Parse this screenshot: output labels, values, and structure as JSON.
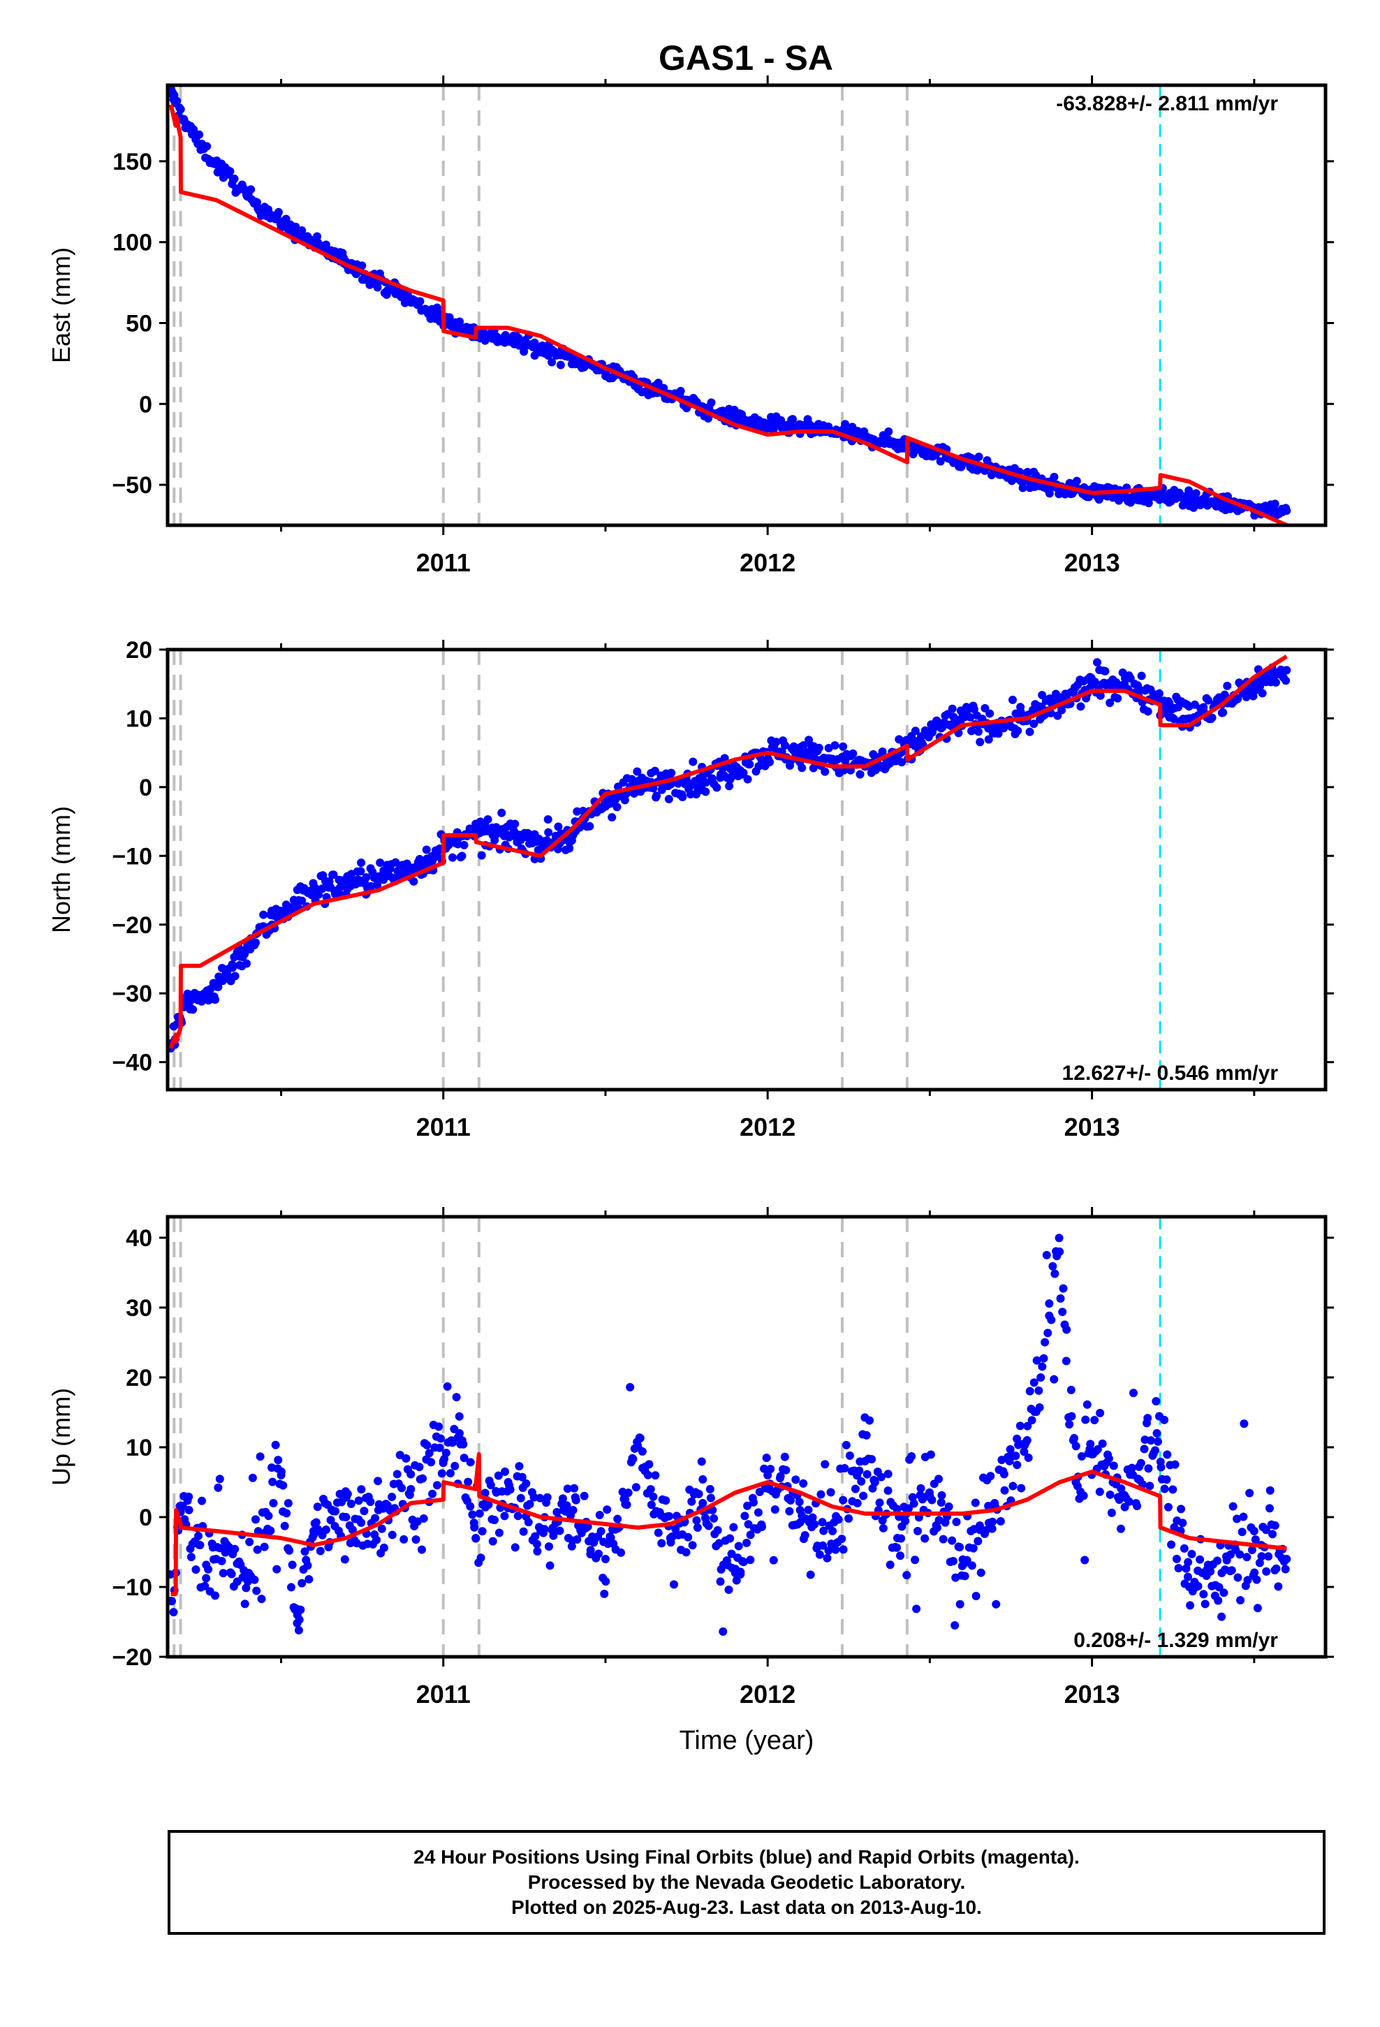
{
  "title": "GAS1 - SA",
  "footer": {
    "line1": "24 Hour Positions Using Final Orbits (blue) and Rapid Orbits (magenta).",
    "line2": "Processed by the Nevada Geodetic Laboratory.",
    "line3": "Plotted on 2025-Aug-23. Last data on 2013-Aug-10."
  },
  "colors": {
    "final_orbits": "#0000ff",
    "model": "#ff0000",
    "equipment_change": "#c0c0c0",
    "event_marker": "#00e5ee"
  },
  "chart_data": [
    {
      "type": "scatter",
      "component": "east",
      "ylabel": "East (mm)",
      "xlabel": "",
      "xlim": [
        2010.15,
        2013.72
      ],
      "ylim": [
        -75,
        197
      ],
      "yticks": [
        -50,
        0,
        50,
        100,
        150
      ],
      "xticks": [
        "2011",
        "2012",
        "2013"
      ],
      "rate_label": "-63.828+/- 2.811 mm/yr",
      "rate_position": "top-right",
      "grid": false,
      "vlines_gray": [
        2010.17,
        2010.19,
        2011.0,
        2011.11,
        2012.23,
        2012.43
      ],
      "vline_cyan": 2013.21,
      "series": [
        {
          "x": [
            2010.16,
            2010.2,
            2010.25,
            2010.3,
            2010.4,
            2010.5,
            2010.6,
            2010.7,
            2010.8,
            2010.9,
            2011.0,
            2011.1,
            2011.2,
            2011.3,
            2011.4,
            2011.5,
            2011.6,
            2011.7,
            2011.8,
            2011.9,
            2012.0,
            2012.1,
            2012.2,
            2012.3,
            2012.4,
            2012.5,
            2012.6,
            2012.7,
            2012.8,
            2012.9,
            2013.0,
            2013.1,
            2013.2,
            2013.3,
            2013.4,
            2013.5,
            2013.6
          ],
          "y": [
            192,
            176,
            160,
            148,
            128,
            112,
            99,
            88,
            76,
            64,
            52,
            44,
            40,
            34,
            28,
            21,
            13,
            6,
            -3,
            -9,
            -13,
            -15,
            -17,
            -21,
            -24,
            -29,
            -35,
            -41,
            -47,
            -52,
            -54,
            -56,
            -57,
            -58,
            -61,
            -64,
            -66
          ]
        }
      ],
      "model": {
        "x": [
          2010.16,
          2010.175,
          2010.176,
          2010.19,
          2010.191,
          2010.3,
          2010.5,
          2010.7,
          2010.9,
          2011.0,
          2011.001,
          2011.1,
          2011.101,
          2011.2,
          2011.3,
          2011.5,
          2011.7,
          2011.9,
          2012.0,
          2012.1,
          2012.2,
          2012.3,
          2012.43,
          2012.431,
          2012.6,
          2012.8,
          2013.0,
          2013.1,
          2013.21,
          2013.211,
          2013.3,
          2013.4,
          2013.5,
          2013.6
        ],
        "y": [
          185,
          172,
          178,
          165,
          131,
          126,
          106,
          86,
          70,
          64,
          45,
          41,
          47,
          47,
          42,
          22,
          5,
          -13,
          -19,
          -17,
          -17,
          -24,
          -36,
          -21,
          -34,
          -46,
          -55,
          -54,
          -52,
          -44,
          -48,
          -58,
          -66,
          -75
        ]
      }
    },
    {
      "type": "scatter",
      "component": "north",
      "ylabel": "North (mm)",
      "xlabel": "",
      "xlim": [
        2010.15,
        2013.72
      ],
      "ylim": [
        -44,
        20
      ],
      "yticks": [
        -40,
        -30,
        -20,
        -10,
        0,
        10,
        20
      ],
      "xticks": [
        "2011",
        "2012",
        "2013"
      ],
      "rate_label": "12.627+/- 0.546 mm/yr",
      "rate_position": "bottom-right",
      "grid": false,
      "vlines_gray": [
        2010.17,
        2010.19,
        2011.0,
        2011.11,
        2012.23,
        2012.43
      ],
      "vline_cyan": 2013.21,
      "series": [
        {
          "x": [
            2010.16,
            2010.2,
            2010.25,
            2010.3,
            2010.4,
            2010.5,
            2010.6,
            2010.7,
            2010.8,
            2010.9,
            2011.0,
            2011.1,
            2011.2,
            2011.3,
            2011.4,
            2011.5,
            2011.6,
            2011.7,
            2011.8,
            2011.9,
            2012.0,
            2012.1,
            2012.2,
            2012.3,
            2012.4,
            2012.5,
            2012.6,
            2012.7,
            2012.8,
            2012.9,
            2013.0,
            2013.1,
            2013.2,
            2013.3,
            2013.4,
            2013.5,
            2013.6
          ],
          "y": [
            -38,
            -32,
            -31,
            -29,
            -23,
            -18,
            -15,
            -14,
            -13,
            -12,
            -9,
            -7,
            -7,
            -8,
            -7,
            -2,
            0,
            1,
            1,
            3,
            5,
            5,
            4,
            3,
            4,
            8,
            10,
            9,
            10,
            12,
            15,
            15,
            13,
            10,
            12,
            15,
            17
          ]
        }
      ],
      "model": {
        "x": [
          2010.16,
          2010.175,
          2010.176,
          2010.19,
          2010.191,
          2010.25,
          2010.4,
          2010.6,
          2010.8,
          2010.9,
          2011.0,
          2011.001,
          2011.1,
          2011.101,
          2011.2,
          2011.3,
          2011.4,
          2011.5,
          2011.7,
          2011.9,
          2012.0,
          2012.1,
          2012.2,
          2012.3,
          2012.43,
          2012.431,
          2012.6,
          2012.8,
          2012.9,
          2013.0,
          2013.1,
          2013.21,
          2013.211,
          2013.3,
          2013.4,
          2013.5,
          2013.6
        ],
        "y": [
          -38,
          -36,
          -37,
          -35,
          -26,
          -26,
          -22,
          -17,
          -15,
          -13,
          -11,
          -7,
          -7,
          -8,
          -9,
          -10,
          -6,
          -1,
          1,
          4,
          5,
          4,
          3,
          3,
          6,
          4,
          9,
          10,
          12,
          14,
          14,
          12,
          9,
          9,
          12,
          16,
          19
        ]
      }
    },
    {
      "type": "scatter",
      "component": "up",
      "ylabel": "Up (mm)",
      "xlabel": "Time (year)",
      "xlim": [
        2010.15,
        2013.72
      ],
      "ylim": [
        -20,
        43
      ],
      "yticks": [
        -20,
        -10,
        0,
        10,
        20,
        30,
        40
      ],
      "xticks": [
        "2011",
        "2012",
        "2013"
      ],
      "rate_label": "0.208+/- 1.329 mm/yr",
      "rate_position": "bottom-right",
      "grid": false,
      "vlines_gray": [
        2010.17,
        2010.19,
        2011.0,
        2011.11,
        2012.23,
        2012.43
      ],
      "vline_cyan": 2013.21,
      "series": [
        {
          "x": [
            2010.16,
            2010.2,
            2010.25,
            2010.3,
            2010.4,
            2010.5,
            2010.55,
            2010.6,
            2010.7,
            2010.8,
            2010.9,
            2011.0,
            2011.05,
            2011.1,
            2011.2,
            2011.3,
            2011.4,
            2011.5,
            2011.6,
            2011.7,
            2011.8,
            2011.9,
            2012.0,
            2012.1,
            2012.2,
            2012.3,
            2012.4,
            2012.5,
            2012.6,
            2012.7,
            2012.8,
            2012.9,
            2012.95,
            2013.0,
            2013.1,
            2013.2,
            2013.3,
            2013.4,
            2013.5,
            2013.6
          ],
          "y": [
            -12,
            3,
            -4,
            -6,
            -8,
            6,
            -14,
            -2,
            0,
            1,
            4,
            8,
            12,
            -3,
            5,
            -2,
            1,
            -6,
            10,
            -3,
            2,
            -8,
            6,
            1,
            -2,
            8,
            -3,
            3,
            -7,
            2,
            11,
            38,
            5,
            9,
            3,
            12,
            -10,
            -8,
            -2,
            -6
          ]
        }
      ],
      "model": {
        "x": [
          2010.16,
          2010.175,
          2010.176,
          2010.19,
          2010.191,
          2010.3,
          2010.5,
          2010.6,
          2010.7,
          2010.8,
          2010.9,
          2011.0,
          2011.001,
          2011.1,
          2011.101,
          2011.11,
          2011.111,
          2011.3,
          2011.5,
          2011.6,
          2011.7,
          2011.8,
          2011.9,
          2012.0,
          2012.1,
          2012.2,
          2012.3,
          2012.43,
          2012.431,
          2012.6,
          2012.7,
          2012.8,
          2012.9,
          2013.0,
          2013.1,
          2013.21,
          2013.211,
          2013.3,
          2013.5,
          2013.6
        ],
        "y": [
          -11,
          -11,
          1,
          -1,
          -1.5,
          -2,
          -3,
          -4,
          -3,
          -1,
          2,
          2.5,
          5,
          4,
          5,
          9,
          3,
          0,
          -1,
          -1.5,
          -1,
          1,
          3.5,
          5,
          3.5,
          1.5,
          0.5,
          0.5,
          0.5,
          0.5,
          1,
          2.5,
          5,
          6.5,
          5,
          3,
          -1.5,
          -3,
          -4,
          -4.5
        ]
      }
    }
  ]
}
